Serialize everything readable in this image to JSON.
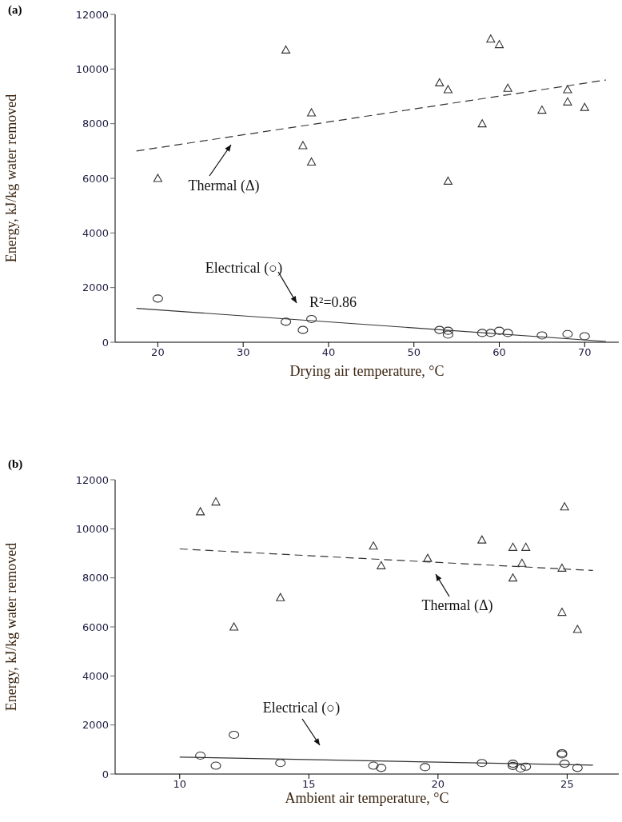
{
  "chart_data": [
    {
      "type": "scatter",
      "title": "(a)",
      "xlabel": "Drying air temperature, °C",
      "ylabel": "Energy, kJ/kg water removed",
      "xlim": [
        15,
        74
      ],
      "xticks": [
        20,
        30,
        40,
        50,
        60,
        70
      ],
      "ylim": [
        0,
        12000
      ],
      "yticks": [
        0,
        2000,
        4000,
        6000,
        8000,
        10000,
        12000
      ],
      "series": [
        {
          "type": "scatter",
          "marker": "triangle",
          "color": "#333333",
          "x": [
            20,
            35,
            37,
            38,
            38,
            53,
            54,
            54,
            58,
            59,
            60,
            61,
            65,
            68,
            68,
            70
          ],
          "values": [
            6000,
            10700,
            7200,
            8400,
            6600,
            9500,
            9250,
            5900,
            8000,
            11100,
            10900,
            9300,
            8500,
            9250,
            8800,
            8600
          ]
        },
        {
          "type": "scatter",
          "marker": "circle",
          "color": "#333333",
          "x": [
            20,
            35,
            37,
            38,
            53,
            54,
            54,
            58,
            59,
            60,
            61,
            65,
            68,
            70
          ],
          "values": [
            1600,
            750,
            450,
            850,
            450,
            420,
            280,
            340,
            340,
            420,
            340,
            250,
            300,
            220
          ]
        },
        {
          "type": "line",
          "marker": "none",
          "line_style": "dashed",
          "color": "#333333",
          "x": [
            17.5,
            72.5
          ],
          "values": [
            7000,
            9600
          ]
        },
        {
          "type": "line",
          "marker": "none",
          "line_style": "solid",
          "color": "#333333",
          "x": [
            17.5,
            72.5
          ],
          "values": [
            1240,
            30
          ]
        }
      ],
      "annotations": [
        "Thermal (Δ)",
        "Electrical (○)",
        "R²=0.86"
      ]
    },
    {
      "type": "scatter",
      "title": "(b)",
      "xlabel": "Ambient air temperature, °C",
      "ylabel": "Energy, kJ/kg water removed",
      "xlim": [
        7.5,
        27
      ],
      "xticks": [
        10,
        15,
        20,
        25
      ],
      "ylim": [
        0,
        12000
      ],
      "yticks": [
        0,
        2000,
        4000,
        6000,
        8000,
        10000,
        12000
      ],
      "series": [
        {
          "type": "scatter",
          "marker": "triangle",
          "color": "#333333",
          "x": [
            10.8,
            11.4,
            12.1,
            13.9,
            17.5,
            17.8,
            19.6,
            21.7,
            22.9,
            22.9,
            23.25,
            23.4,
            24.9,
            24.8,
            24.8,
            25.4
          ],
          "values": [
            10700,
            11100,
            6000,
            7200,
            9300,
            8500,
            8800,
            9550,
            9250,
            8000,
            8600,
            9250,
            10900,
            8400,
            6600,
            5900
          ]
        },
        {
          "type": "scatter",
          "marker": "circle",
          "color": "#333333",
          "x": [
            10.8,
            11.4,
            12.1,
            13.9,
            17.5,
            17.8,
            19.5,
            21.7,
            22.9,
            22.9,
            23.2,
            23.4,
            24.8,
            24.8,
            24.9,
            25.4
          ],
          "values": [
            750,
            340,
            1600,
            450,
            340,
            250,
            280,
            450,
            420,
            330,
            230,
            300,
            850,
            800,
            420,
            250
          ]
        },
        {
          "type": "line",
          "marker": "none",
          "line_style": "dashed",
          "color": "#333333",
          "x": [
            10,
            26
          ],
          "values": [
            9180,
            8300
          ]
        },
        {
          "type": "line",
          "marker": "none",
          "line_style": "solid",
          "color": "#333333",
          "x": [
            10,
            26
          ],
          "values": [
            690,
            360
          ]
        }
      ],
      "annotations": [
        "Thermal (Δ)",
        "Electrical (○)"
      ]
    }
  ]
}
